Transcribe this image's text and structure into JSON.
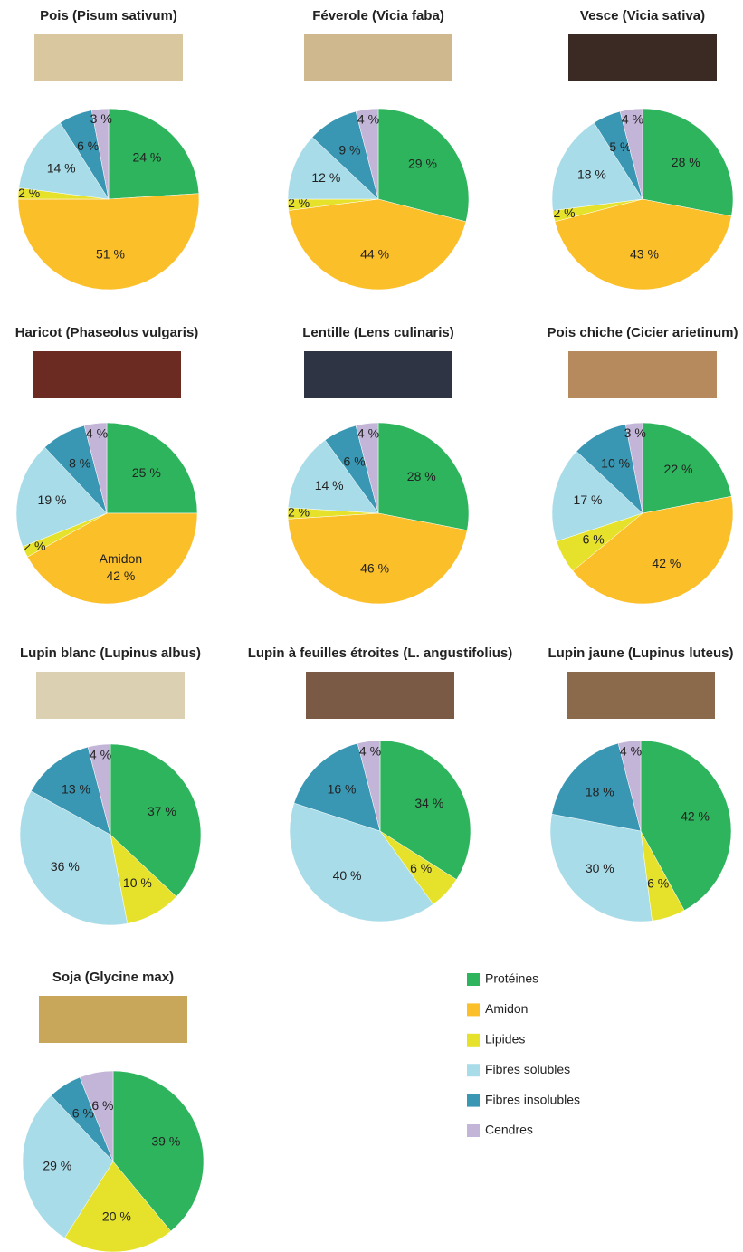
{
  "chart_data": [
    {
      "type": "pie",
      "title": "Pois (Pisum sativum)",
      "values": [
        24,
        51,
        2,
        14,
        6,
        3
      ],
      "value_labels": [
        "24 %",
        "51 %",
        "2 %",
        "14 %",
        "6 %",
        "3 %"
      ]
    },
    {
      "type": "pie",
      "title": "Féverole (Vicia faba)",
      "values": [
        29,
        44,
        2,
        12,
        9,
        4
      ],
      "value_labels": [
        "29 %",
        "44 %",
        "2 %",
        "12 %",
        "9 %",
        "4 %"
      ]
    },
    {
      "type": "pie",
      "title": "Vesce (Vicia sativa)",
      "values": [
        28,
        43,
        2,
        18,
        5,
        4
      ],
      "value_labels": [
        "28 %",
        "43 %",
        "2 %",
        "18 %",
        "5 %",
        "4 %"
      ]
    },
    {
      "type": "pie",
      "title": "Haricot (Phaseolus vulgaris)",
      "values": [
        25,
        42,
        2,
        19,
        8,
        4
      ],
      "value_labels": [
        "25 %",
        "42 %",
        "2 %",
        "19 %",
        "8 %",
        "4 %"
      ],
      "annotation": "Amidon"
    },
    {
      "type": "pie",
      "title": "Lentille (Lens culinaris)",
      "values": [
        28,
        46,
        2,
        14,
        6,
        4
      ],
      "value_labels": [
        "28 %",
        "46 %",
        "2 %",
        "14 %",
        "6 %",
        "4 %"
      ]
    },
    {
      "type": "pie",
      "title": "Pois chiche (Cicier arietinum)",
      "values": [
        22,
        42,
        6,
        17,
        10,
        3
      ],
      "value_labels": [
        "22 %",
        "42 %",
        "6 %",
        "17 %",
        "10 %",
        "3 %"
      ]
    },
    {
      "type": "pie",
      "title": "Lupin blanc (Lupinus albus)",
      "values": [
        37,
        null,
        10,
        36,
        13,
        4
      ],
      "value_labels": [
        "37 %",
        null,
        "10 %",
        "36 %",
        "13 %",
        "4 %"
      ]
    },
    {
      "type": "pie",
      "title": "Lupin à feuilles étroites (L. angustifolius)",
      "values": [
        34,
        null,
        6,
        40,
        16,
        4
      ],
      "value_labels": [
        "34 %",
        null,
        "6 %",
        "40 %",
        "16 %",
        "4 %"
      ]
    },
    {
      "type": "pie",
      "title": "Lupin jaune (Lupinus luteus)",
      "values": [
        42,
        null,
        6,
        30,
        18,
        4
      ],
      "value_labels": [
        "42 %",
        null,
        "6 %",
        "30 %",
        "18 %",
        "4 %"
      ]
    },
    {
      "type": "pie",
      "title": "Soja (Glycine max)",
      "values": [
        39,
        null,
        20,
        29,
        6,
        6
      ],
      "value_labels": [
        "39 %",
        null,
        "20 %",
        "29 %",
        "6 %",
        "6 %"
      ]
    }
  ],
  "legend": {
    "categories": [
      "Protéines",
      "Amidon",
      "Lipides",
      "Fibres solubles",
      "Fibres insolubles",
      "Cendres"
    ],
    "colors": [
      "#2db45d",
      "#fbbf2a",
      "#e6e22c",
      "#a9dce9",
      "#3a97b3",
      "#c3b5d8"
    ]
  }
}
